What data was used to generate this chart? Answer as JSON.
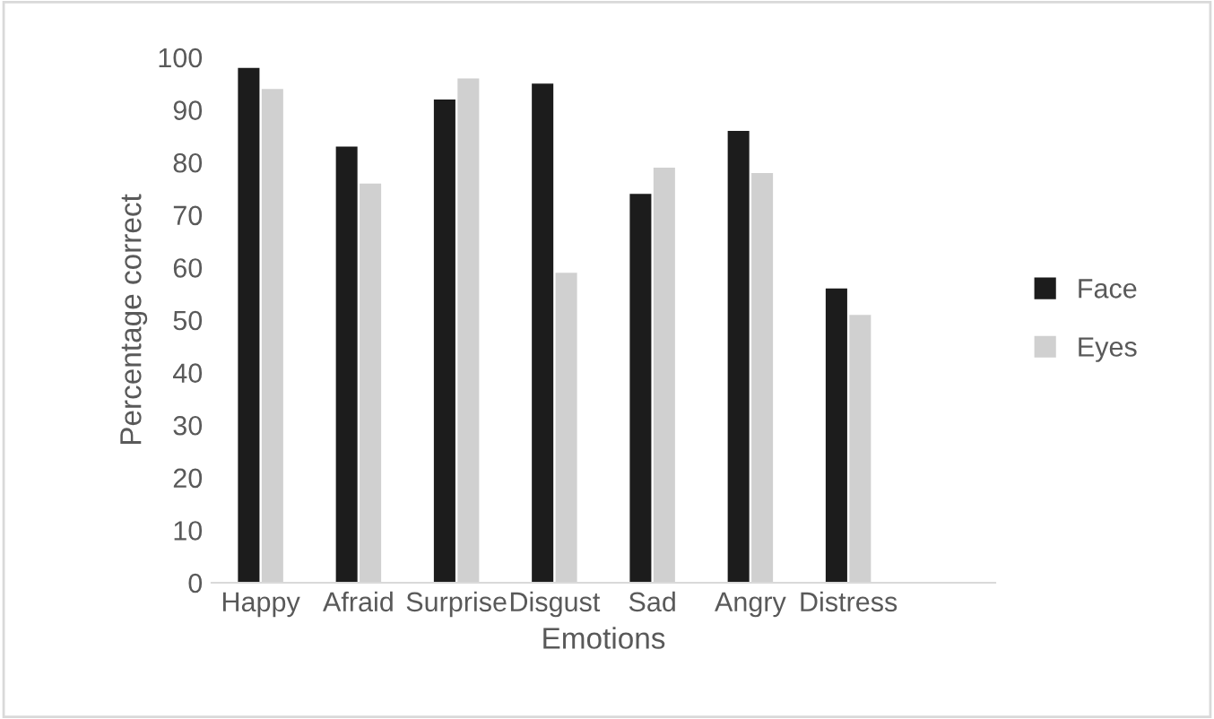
{
  "chart_data": {
    "type": "bar",
    "xlabel": "Emotions",
    "ylabel": "Percentage correct",
    "categories": [
      "Happy",
      "Afraid",
      "Surprise",
      "Disgust",
      "Sad",
      "Angry",
      "Distress",
      null
    ],
    "series": [
      {
        "name": "Face",
        "color": "#1c1c1c",
        "values": [
          98,
          83,
          92,
          95,
          74,
          86,
          56,
          null
        ]
      },
      {
        "name": "Eyes",
        "color": "#d0d0d0",
        "values": [
          94,
          76,
          96,
          59,
          79,
          78,
          51,
          null
        ]
      }
    ],
    "ylim": [
      0,
      100
    ],
    "yticks": [
      0,
      10,
      20,
      30,
      40,
      50,
      60,
      70,
      80,
      90,
      100
    ],
    "grid": false,
    "legend": "right"
  }
}
